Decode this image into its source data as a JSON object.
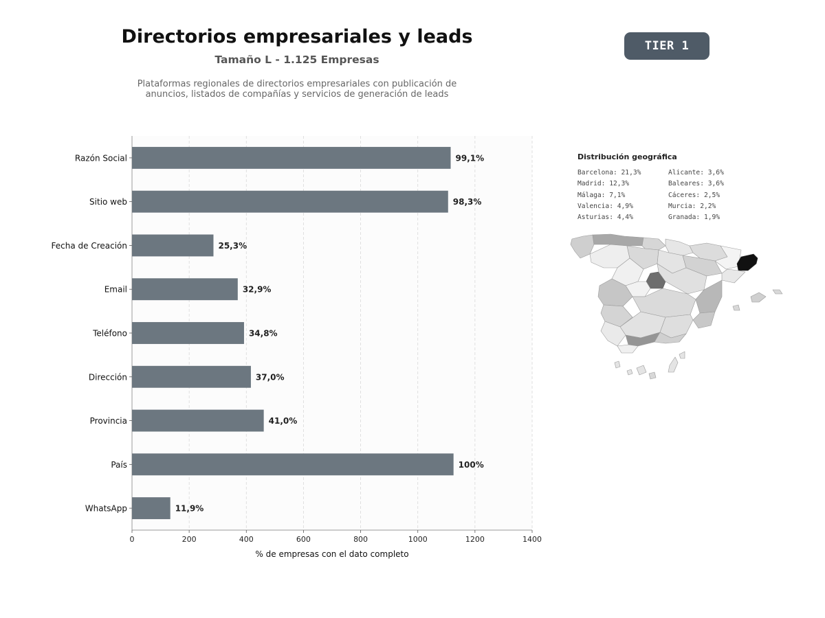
{
  "header": {
    "title": "Directorios empresariales y leads",
    "subtitle": "Tamaño L - 1.125 Empresas",
    "description_line1": "Plataformas regionales de directorios empresariales con publicación de",
    "description_line2": "anuncios, listados de compañías y servicios de generación de leads",
    "tier": "TIER 1"
  },
  "colors": {
    "bar": "#6c7780",
    "badge": "#4f5b67",
    "plot_background": "#fcfcfc",
    "highlight_region": "#111111"
  },
  "chart_data": {
    "type": "bar",
    "orientation": "horizontal",
    "categories": [
      "Razón Social",
      "Sitio web",
      "Fecha de Creación",
      "Email",
      "Teléfono",
      "Dirección",
      "Provincia",
      "País",
      "WhatsApp"
    ],
    "values": [
      1115,
      1106,
      285,
      370,
      392,
      416,
      461,
      1125,
      134
    ],
    "data_labels": [
      "99,1%",
      "98,3%",
      "25,3%",
      "32,9%",
      "34,8%",
      "37,0%",
      "41,0%",
      "100%",
      "11,9%"
    ],
    "xlabel": "% de empresas con el dato completo",
    "xlim": [
      0,
      1400
    ],
    "xticks": [
      0,
      200,
      400,
      600,
      800,
      1000,
      1200,
      1400
    ],
    "grid": "vertical dashed"
  },
  "geo": {
    "title": "Distribución geográfica",
    "col1": [
      "Barcelona: 21,3%",
      "Madrid: 12,3%",
      "Málaga: 7,1%",
      "Valencia: 4,9%",
      "Asturias: 4,4%"
    ],
    "col2": [
      "Alicante: 3,6%",
      "Baleares: 3,6%",
      "Cáceres: 2,5%",
      "Murcia: 2,2%",
      "Granada: 1,9%"
    ]
  }
}
